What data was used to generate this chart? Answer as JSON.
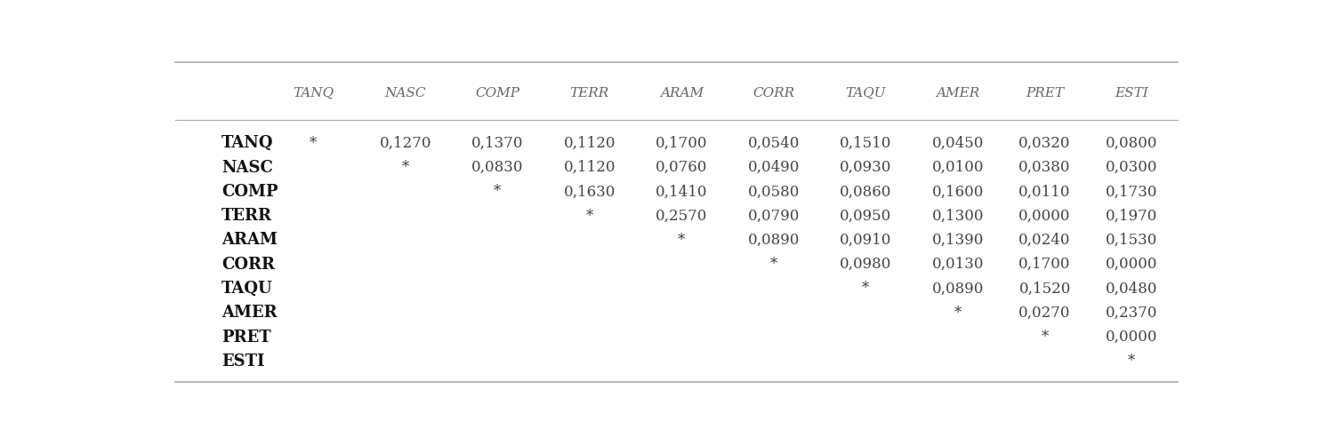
{
  "columns": [
    "",
    "TANQ",
    "NASC",
    "COMP",
    "TERR",
    "ARAM",
    "CORR",
    "TAQU",
    "AMER",
    "PRET",
    "ESTI"
  ],
  "rows": [
    [
      "TANQ",
      "*",
      "0,1270",
      "0,1370",
      "0,1120",
      "0,1700",
      "0,0540",
      "0,1510",
      "0,0450",
      "0,0320",
      "0,0800"
    ],
    [
      "NASC",
      "",
      "*",
      "0,0830",
      "0,1120",
      "0,0760",
      "0,0490",
      "0,0930",
      "0,0100",
      "0,0380",
      "0,0300"
    ],
    [
      "COMP",
      "",
      "",
      "*",
      "0,1630",
      "0,1410",
      "0,0580",
      "0,0860",
      "0,1600",
      "0,0110",
      "0,1730"
    ],
    [
      "TERR",
      "",
      "",
      "",
      "*",
      "0,2570",
      "0,0790",
      "0,0950",
      "0,1300",
      "0,0000",
      "0,1970"
    ],
    [
      "ARAM",
      "",
      "",
      "",
      "",
      "*",
      "0,0890",
      "0,0910",
      "0,1390",
      "0,0240",
      "0,1530"
    ],
    [
      "CORR",
      "",
      "",
      "",
      "",
      "",
      "*",
      "0,0980",
      "0,0130",
      "0,1700",
      "0,0000"
    ],
    [
      "TAQU",
      "",
      "",
      "",
      "",
      "",
      "",
      "*",
      "0,0890",
      "0,1520",
      "0,0480"
    ],
    [
      "AMER",
      "",
      "",
      "",
      "",
      "",
      "",
      "",
      "*",
      "0,0270",
      "0,2370"
    ],
    [
      "PRET",
      "",
      "",
      "",
      "",
      "",
      "",
      "",
      "",
      "*",
      "0,0000"
    ],
    [
      "ESTI",
      "",
      "",
      "",
      "",
      "",
      "",
      "",
      "",
      "",
      "*"
    ]
  ],
  "text_color": "#444444",
  "header_text_color": "#666666",
  "row_label_color": "#111111",
  "line_color": "#aaaaaa",
  "font_size": 12,
  "header_font_size": 11,
  "row_label_font_size": 13
}
